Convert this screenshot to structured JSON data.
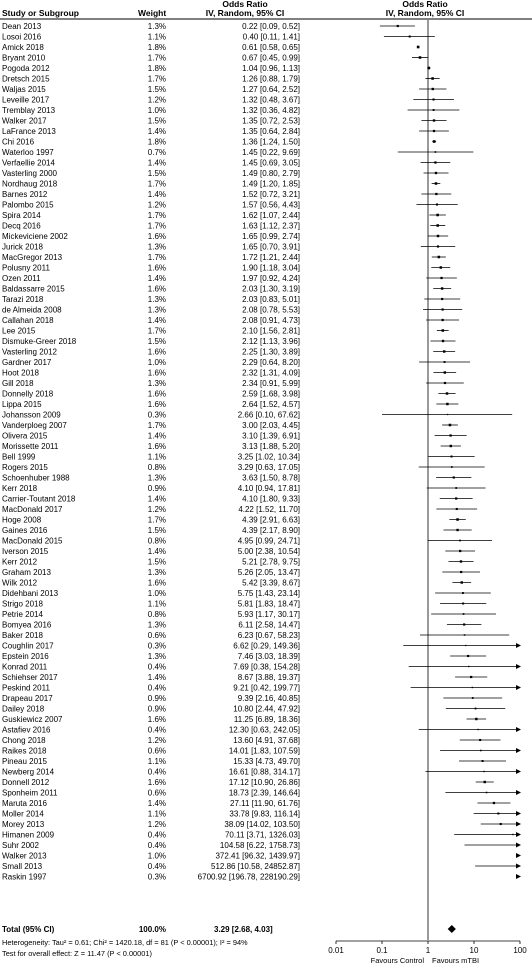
{
  "header": {
    "col_study": "Study or Subgroup",
    "col_weight": "Weight",
    "col_or_top": "Odds Ratio",
    "col_or_sub": "IV, Random, 95% CI",
    "plot_top": "Odds Ratio",
    "plot_sub": "IV, Random, 95% CI"
  },
  "total": {
    "label": "Total (95% CI)",
    "weight": "100.0%",
    "ci_text": "3.29 [2.68, 4.03]"
  },
  "footer": {
    "heterogeneity": "Heterogeneity: Tau² = 0.61; Chi² = 1420.18, df = 81 (P < 0.00001); I² = 94%",
    "overall": "Test for overall effect: Z = 11.47 (P < 0.00001)"
  },
  "chart_data": {
    "type": "forest",
    "xscale": "log",
    "xlim": [
      0.01,
      100
    ],
    "x_ticks": [
      "0.01",
      "0.1",
      "1",
      "10",
      "100"
    ],
    "null_line": 1,
    "xlabel_left": "Favours Control",
    "xlabel_right": "Favours mTBI",
    "summary": {
      "or": 3.29,
      "lo": 2.68,
      "hi": 4.03
    },
    "studies": [
      {
        "study": "Dean 2013",
        "weight": "1.3%",
        "or": 0.22,
        "lo": 0.09,
        "hi": 0.52,
        "ci": "0.22 [0.09, 0.52]"
      },
      {
        "study": "Losoi 2016",
        "weight": "1.1%",
        "or": 0.4,
        "lo": 0.11,
        "hi": 1.41,
        "ci": "0.40 [0.11, 1.41]"
      },
      {
        "study": "Amick 2018",
        "weight": "1.8%",
        "or": 0.61,
        "lo": 0.58,
        "hi": 0.65,
        "ci": "0.61 [0.58, 0.65]"
      },
      {
        "study": "Bryant 2010",
        "weight": "1.7%",
        "or": 0.67,
        "lo": 0.45,
        "hi": 0.99,
        "ci": "0.67 [0.45, 0.99]"
      },
      {
        "study": "Pogoda 2012",
        "weight": "1.8%",
        "or": 1.04,
        "lo": 0.96,
        "hi": 1.13,
        "ci": "1.04 [0.96, 1.13]"
      },
      {
        "study": "Dretsch 2015",
        "weight": "1.7%",
        "or": 1.26,
        "lo": 0.88,
        "hi": 1.79,
        "ci": "1.26 [0.88, 1.79]"
      },
      {
        "study": "Waljas 2015",
        "weight": "1.5%",
        "or": 1.27,
        "lo": 0.64,
        "hi": 2.52,
        "ci": "1.27 [0.64, 2.52]"
      },
      {
        "study": "Leveille 2017",
        "weight": "1.2%",
        "or": 1.32,
        "lo": 0.48,
        "hi": 3.67,
        "ci": "1.32 [0.48, 3.67]"
      },
      {
        "study": "Tremblay 2013",
        "weight": "1.0%",
        "or": 1.32,
        "lo": 0.36,
        "hi": 4.82,
        "ci": "1.32 [0.36, 4.82]"
      },
      {
        "study": "Walker 2017",
        "weight": "1.5%",
        "or": 1.35,
        "lo": 0.72,
        "hi": 2.53,
        "ci": "1.35 [0.72, 2.53]"
      },
      {
        "study": "LaFrance 2013",
        "weight": "1.4%",
        "or": 1.35,
        "lo": 0.64,
        "hi": 2.84,
        "ci": "1.35 [0.64, 2.84]"
      },
      {
        "study": "Chi 2016",
        "weight": "1.8%",
        "or": 1.36,
        "lo": 1.24,
        "hi": 1.5,
        "ci": "1.36 [1.24, 1.50]"
      },
      {
        "study": "Waterloo 1997",
        "weight": "0.7%",
        "or": 1.45,
        "lo": 0.22,
        "hi": 9.69,
        "ci": "1.45 [0.22, 9.69]"
      },
      {
        "study": "Verfaellie 2014",
        "weight": "1.4%",
        "or": 1.45,
        "lo": 0.69,
        "hi": 3.05,
        "ci": "1.45 [0.69, 3.05]"
      },
      {
        "study": "Vasterling 2000",
        "weight": "1.5%",
        "or": 1.49,
        "lo": 0.8,
        "hi": 2.79,
        "ci": "1.49 [0.80, 2.79]"
      },
      {
        "study": "Nordhaug 2018",
        "weight": "1.7%",
        "or": 1.49,
        "lo": 1.2,
        "hi": 1.85,
        "ci": "1.49 [1.20, 1.85]"
      },
      {
        "study": "Barnes 2012",
        "weight": "1.4%",
        "or": 1.52,
        "lo": 0.72,
        "hi": 3.21,
        "ci": "1.52 [0.72, 3.21]"
      },
      {
        "study": "Palombo 2015",
        "weight": "1.2%",
        "or": 1.57,
        "lo": 0.56,
        "hi": 4.43,
        "ci": "1.57 [0.56, 4.43]"
      },
      {
        "study": "Spira 2014",
        "weight": "1.7%",
        "or": 1.62,
        "lo": 1.07,
        "hi": 2.44,
        "ci": "1.62 [1.07, 2.44]"
      },
      {
        "study": "Decq 2016",
        "weight": "1.7%",
        "or": 1.63,
        "lo": 1.12,
        "hi": 2.37,
        "ci": "1.63 [1.12, 2.37]"
      },
      {
        "study": "Mickeviciene 2002",
        "weight": "1.6%",
        "or": 1.65,
        "lo": 0.99,
        "hi": 2.74,
        "ci": "1.65 [0.99, 2.74]"
      },
      {
        "study": "Jurick 2018",
        "weight": "1.3%",
        "or": 1.65,
        "lo": 0.7,
        "hi": 3.91,
        "ci": "1.65 [0.70, 3.91]"
      },
      {
        "study": "MacGregor 2013",
        "weight": "1.7%",
        "or": 1.72,
        "lo": 1.21,
        "hi": 2.44,
        "ci": "1.72 [1.21, 2.44]"
      },
      {
        "study": "Polusny 2011",
        "weight": "1.6%",
        "or": 1.9,
        "lo": 1.18,
        "hi": 3.04,
        "ci": "1.90 [1.18, 3.04]"
      },
      {
        "study": "Ozen 2011",
        "weight": "1.4%",
        "or": 1.97,
        "lo": 0.92,
        "hi": 4.24,
        "ci": "1.97 [0.92, 4.24]"
      },
      {
        "study": "Baldassarre 2015",
        "weight": "1.6%",
        "or": 2.03,
        "lo": 1.3,
        "hi": 3.19,
        "ci": "2.03 [1.30, 3.19]"
      },
      {
        "study": "Tarazi 2018",
        "weight": "1.3%",
        "or": 2.03,
        "lo": 0.83,
        "hi": 5.01,
        "ci": "2.03 [0.83, 5.01]"
      },
      {
        "study": "de Almeida 2008",
        "weight": "1.3%",
        "or": 2.08,
        "lo": 0.78,
        "hi": 5.53,
        "ci": "2.08 [0.78, 5.53]"
      },
      {
        "study": "Callahan 2018",
        "weight": "1.4%",
        "or": 2.08,
        "lo": 0.91,
        "hi": 4.73,
        "ci": "2.08 [0.91, 4.73]"
      },
      {
        "study": "Lee 2015",
        "weight": "1.7%",
        "or": 2.1,
        "lo": 1.56,
        "hi": 2.81,
        "ci": "2.10 [1.56, 2.81]"
      },
      {
        "study": "Dismuke-Greer 2018",
        "weight": "1.5%",
        "or": 2.12,
        "lo": 1.13,
        "hi": 3.96,
        "ci": "2.12 [1.13, 3.96]"
      },
      {
        "study": "Vasterling 2012",
        "weight": "1.6%",
        "or": 2.25,
        "lo": 1.3,
        "hi": 3.89,
        "ci": "2.25 [1.30, 3.89]"
      },
      {
        "study": "Gardner 2017",
        "weight": "1.0%",
        "or": 2.29,
        "lo": 0.64,
        "hi": 8.2,
        "ci": "2.29 [0.64, 8.20]"
      },
      {
        "study": "Hoot 2018",
        "weight": "1.6%",
        "or": 2.32,
        "lo": 1.31,
        "hi": 4.09,
        "ci": "2.32 [1.31, 4.09]"
      },
      {
        "study": "Gill 2018",
        "weight": "1.3%",
        "or": 2.34,
        "lo": 0.91,
        "hi": 5.99,
        "ci": "2.34 [0.91, 5.99]"
      },
      {
        "study": "Donnelly 2018",
        "weight": "1.6%",
        "or": 2.59,
        "lo": 1.68,
        "hi": 3.98,
        "ci": "2.59 [1.68, 3.98]"
      },
      {
        "study": "Lippa 2015",
        "weight": "1.6%",
        "or": 2.64,
        "lo": 1.52,
        "hi": 4.57,
        "ci": "2.64 [1.52, 4.57]"
      },
      {
        "study": "Johansson 2009",
        "weight": "0.3%",
        "or": 2.66,
        "lo": 0.1,
        "hi": 67.62,
        "ci": "2.66 [0.10, 67.62]"
      },
      {
        "study": "Vanderploeg 2007",
        "weight": "1.7%",
        "or": 3.0,
        "lo": 2.03,
        "hi": 4.45,
        "ci": "3.00 [2.03, 4.45]"
      },
      {
        "study": "Olivera 2015",
        "weight": "1.4%",
        "or": 3.1,
        "lo": 1.39,
        "hi": 6.91,
        "ci": "3.10 [1.39, 6.91]"
      },
      {
        "study": "Morissette 2011",
        "weight": "1.6%",
        "or": 3.13,
        "lo": 1.88,
        "hi": 5.2,
        "ci": "3.13 [1.88, 5.20]"
      },
      {
        "study": "Bell 1999",
        "weight": "1.1%",
        "or": 3.25,
        "lo": 1.02,
        "hi": 10.34,
        "ci": "3.25 [1.02, 10.34]"
      },
      {
        "study": "Rogers 2015",
        "weight": "0.8%",
        "or": 3.29,
        "lo": 0.63,
        "hi": 17.05,
        "ci": "3.29 [0.63, 17.05]"
      },
      {
        "study": "Schoenhuber 1988",
        "weight": "1.3%",
        "or": 3.63,
        "lo": 1.5,
        "hi": 8.78,
        "ci": "3.63 [1.50, 8.78]"
      },
      {
        "study": "Kerr 2018",
        "weight": "0.9%",
        "or": 4.1,
        "lo": 0.94,
        "hi": 17.81,
        "ci": "4.10 [0.94, 17.81]"
      },
      {
        "study": "Carrier-Toutant 2018",
        "weight": "1.4%",
        "or": 4.1,
        "lo": 1.8,
        "hi": 9.33,
        "ci": "4.10 [1.80, 9.33]"
      },
      {
        "study": "MacDonald 2017",
        "weight": "1.2%",
        "or": 4.22,
        "lo": 1.52,
        "hi": 11.7,
        "ci": "4.22 [1.52, 11.70]"
      },
      {
        "study": "Hoge 2008",
        "weight": "1.7%",
        "or": 4.39,
        "lo": 2.91,
        "hi": 6.63,
        "ci": "4.39 [2.91, 6.63]"
      },
      {
        "study": "Gaines 2016",
        "weight": "1.5%",
        "or": 4.39,
        "lo": 2.17,
        "hi": 8.9,
        "ci": "4.39 [2.17, 8.90]"
      },
      {
        "study": "MacDonald 2015",
        "weight": "0.8%",
        "or": 4.95,
        "lo": 0.99,
        "hi": 24.71,
        "ci": "4.95 [0.99, 24.71]"
      },
      {
        "study": "Iverson 2015",
        "weight": "1.4%",
        "or": 5.0,
        "lo": 2.38,
        "hi": 10.54,
        "ci": "5.00 [2.38, 10.54]"
      },
      {
        "study": "Kerr 2012",
        "weight": "1.5%",
        "or": 5.21,
        "lo": 2.78,
        "hi": 9.75,
        "ci": "5.21 [2.78, 9.75]"
      },
      {
        "study": "Graham 2013",
        "weight": "1.3%",
        "or": 5.26,
        "lo": 2.05,
        "hi": 13.47,
        "ci": "5.26 [2.05, 13.47]"
      },
      {
        "study": "Wilk 2012",
        "weight": "1.6%",
        "or": 5.42,
        "lo": 3.39,
        "hi": 8.67,
        "ci": "5.42 [3.39, 8.67]"
      },
      {
        "study": "Didehbani 2013",
        "weight": "1.0%",
        "or": 5.75,
        "lo": 1.43,
        "hi": 23.14,
        "ci": "5.75 [1.43, 23.14]"
      },
      {
        "study": "Strigo 2018",
        "weight": "1.1%",
        "or": 5.81,
        "lo": 1.83,
        "hi": 18.47,
        "ci": "5.81 [1.83, 18.47]"
      },
      {
        "study": "Petrie 2014",
        "weight": "0.8%",
        "or": 5.93,
        "lo": 1.17,
        "hi": 30.17,
        "ci": "5.93 [1.17, 30.17]"
      },
      {
        "study": "Bomyea 2016",
        "weight": "1.3%",
        "or": 6.11,
        "lo": 2.58,
        "hi": 14.47,
        "ci": "6.11 [2.58, 14.47]"
      },
      {
        "study": "Baker 2018",
        "weight": "0.6%",
        "or": 6.23,
        "lo": 0.67,
        "hi": 58.23,
        "ci": "6.23 [0.67, 58.23]"
      },
      {
        "study": "Coughlin 2017",
        "weight": "0.3%",
        "or": 6.62,
        "lo": 0.29,
        "hi": 149.36,
        "ci": "6.62 [0.29, 149.36]"
      },
      {
        "study": "Epstein 2016",
        "weight": "1.3%",
        "or": 7.46,
        "lo": 3.03,
        "hi": 18.39,
        "ci": "7.46 [3.03, 18.39]"
      },
      {
        "study": "Konrad 2011",
        "weight": "0.4%",
        "or": 7.69,
        "lo": 0.38,
        "hi": 154.28,
        "ci": "7.69 [0.38, 154.28]"
      },
      {
        "study": "Schiehser 2017",
        "weight": "1.4%",
        "or": 8.67,
        "lo": 3.88,
        "hi": 19.37,
        "ci": "8.67 [3.88, 19.37]"
      },
      {
        "study": "Peskind 2011",
        "weight": "0.4%",
        "or": 9.21,
        "lo": 0.42,
        "hi": 199.77,
        "ci": "9.21 [0.42, 199.77]"
      },
      {
        "study": "Drapeau 2017",
        "weight": "0.9%",
        "or": 9.39,
        "lo": 2.16,
        "hi": 40.85,
        "ci": "9.39 [2.16, 40.85]"
      },
      {
        "study": "Dailey 2018",
        "weight": "0.9%",
        "or": 10.8,
        "lo": 2.44,
        "hi": 47.92,
        "ci": "10.80 [2.44, 47.92]"
      },
      {
        "study": "Guskiewicz 2007",
        "weight": "1.6%",
        "or": 11.25,
        "lo": 6.89,
        "hi": 18.36,
        "ci": "11.25 [6.89, 18.36]"
      },
      {
        "study": "Astafiev 2016",
        "weight": "0.4%",
        "or": 12.3,
        "lo": 0.63,
        "hi": 242.05,
        "ci": "12.30 [0.63, 242.05]"
      },
      {
        "study": "Chong 2018",
        "weight": "1.2%",
        "or": 13.6,
        "lo": 4.91,
        "hi": 37.68,
        "ci": "13.60 [4.91, 37.68]"
      },
      {
        "study": "Raikes 2018",
        "weight": "0.6%",
        "or": 14.01,
        "lo": 1.83,
        "hi": 107.59,
        "ci": "14.01 [1.83, 107.59]"
      },
      {
        "study": "Pineau 2015",
        "weight": "1.1%",
        "or": 15.33,
        "lo": 4.73,
        "hi": 49.7,
        "ci": "15.33 [4.73, 49.70]"
      },
      {
        "study": "Newberg 2014",
        "weight": "0.4%",
        "or": 16.61,
        "lo": 0.88,
        "hi": 314.17,
        "ci": "16.61 [0.88, 314.17]"
      },
      {
        "study": "Donnell 2012",
        "weight": "1.6%",
        "or": 17.12,
        "lo": 10.9,
        "hi": 26.86,
        "ci": "17.12 [10.90, 26.86]"
      },
      {
        "study": "Sponheim 2011",
        "weight": "0.6%",
        "or": 18.73,
        "lo": 2.39,
        "hi": 146.64,
        "ci": "18.73 [2.39, 146.64]"
      },
      {
        "study": "Maruta 2016",
        "weight": "1.4%",
        "or": 27.11,
        "lo": 11.9,
        "hi": 61.76,
        "ci": "27.11 [11.90, 61.76]"
      },
      {
        "study": "Moller 2014",
        "weight": "1.1%",
        "or": 33.78,
        "lo": 9.83,
        "hi": 116.14,
        "ci": "33.78 [9.83, 116.14]"
      },
      {
        "study": "Morey 2013",
        "weight": "1.2%",
        "or": 38.09,
        "lo": 14.02,
        "hi": 103.5,
        "ci": "38.09 [14.02, 103.50]"
      },
      {
        "study": "Himanen 2009",
        "weight": "0.4%",
        "or": 70.11,
        "lo": 3.71,
        "hi": 1326.03,
        "ci": "70.11 [3.71, 1326.03]"
      },
      {
        "study": "Suhr 2002",
        "weight": "0.4%",
        "or": 104.58,
        "lo": 6.22,
        "hi": 1758.73,
        "ci": "104.58 [6.22, 1758.73]"
      },
      {
        "study": "Walker 2013",
        "weight": "1.0%",
        "or": 372.41,
        "lo": 96.32,
        "hi": 1439.97,
        "ci": "372.41 [96.32, 1439.97]"
      },
      {
        "study": "Small 2013",
        "weight": "0.4%",
        "or": 512.86,
        "lo": 10.58,
        "hi": 24852.87,
        "ci": "512.86 [10.58, 24852.87]"
      },
      {
        "study": "Raskin 1997",
        "weight": "0.3%",
        "or": 6700.92,
        "lo": 196.78,
        "hi": 228190.29,
        "ci": "6700.92 [196.78, 228190.29]"
      }
    ]
  }
}
